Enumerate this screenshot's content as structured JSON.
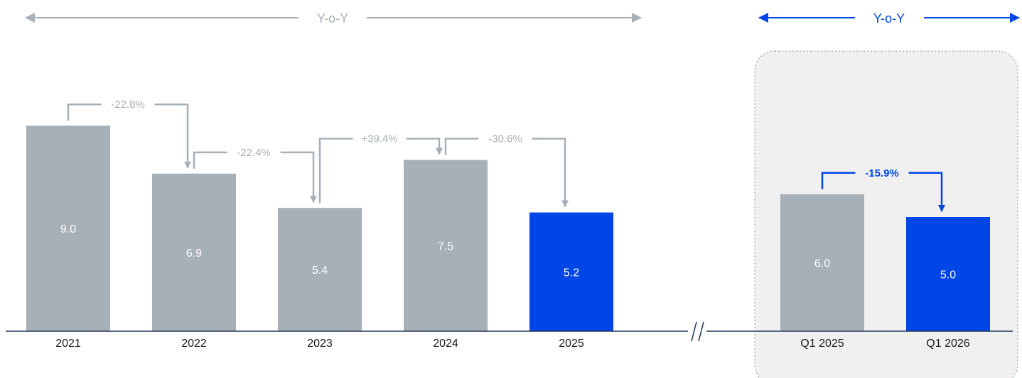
{
  "chart_data": {
    "type": "bar",
    "title": "",
    "xlabel": "",
    "ylabel": "",
    "ylim": [
      0,
      10
    ],
    "groups": [
      {
        "header_label": "Y-o-Y",
        "categories": [
          "2021",
          "2022",
          "2023",
          "2024",
          "2025"
        ],
        "values": [
          9.0,
          6.9,
          5.4,
          7.5,
          5.2
        ],
        "value_labels": [
          "9.0",
          "6.9",
          "5.4",
          "7.5",
          "5.2"
        ],
        "highlight_index": 4,
        "changes": [
          {
            "from": 0,
            "to": 1,
            "label": "-22.8%"
          },
          {
            "from": 1,
            "to": 2,
            "label": "-22.4%"
          },
          {
            "from": 2,
            "to": 3,
            "label": "+39.4%"
          },
          {
            "from": 3,
            "to": 4,
            "label": "-30.6%"
          }
        ]
      },
      {
        "header_label": "Y-o-Y",
        "categories": [
          "Q1 2025",
          "Q1 2026"
        ],
        "values": [
          6.0,
          5.0
        ],
        "value_labels": [
          "6.0",
          "5.0"
        ],
        "highlight_index": 1,
        "changes": [
          {
            "from": 0,
            "to": 1,
            "label": "-15.9%"
          }
        ]
      }
    ],
    "axis_break_label": "//",
    "colors": {
      "bar": "#a7b0b7",
      "highlight": "#0046e6",
      "grey_arrow": "#a7b0b7",
      "blue_arrow": "#0046e6",
      "bar_value_text": "#ffffff",
      "axis": "#1f3a5a",
      "category_text": "#1a1a1a",
      "panel_fill": "#f0f0f0",
      "panel_border": "#7a94ad"
    }
  }
}
